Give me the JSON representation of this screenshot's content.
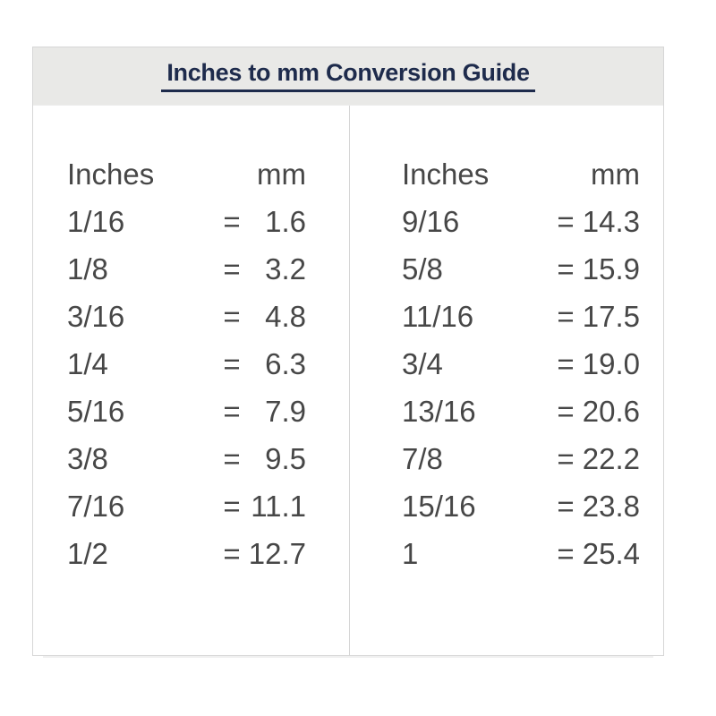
{
  "page": {
    "title": "Inches to mm Conversion Guide"
  },
  "table": {
    "left": {
      "inches_header": "Inches",
      "mm_header": "mm",
      "rows": [
        {
          "in": "1/16",
          "eq": "=",
          "mm": "1.6"
        },
        {
          "in": "1/8",
          "eq": "=",
          "mm": "3.2"
        },
        {
          "in": "3/16",
          "eq": "=",
          "mm": "4.8"
        },
        {
          "in": "1/4",
          "eq": "=",
          "mm": "6.3"
        },
        {
          "in": "5/16",
          "eq": "=",
          "mm": "7.9"
        },
        {
          "in": "3/8",
          "eq": "=",
          "mm": "9.5"
        },
        {
          "in": "7/16",
          "eq": "=",
          "mm": "11.1"
        },
        {
          "in": "1/2",
          "eq": "=",
          "mm": "12.7"
        }
      ]
    },
    "right": {
      "inches_header": "Inches",
      "mm_header": "mm",
      "rows": [
        {
          "in": "9/16",
          "eq": "=",
          "mm": "14.3"
        },
        {
          "in": "5/8",
          "eq": "=",
          "mm": "15.9"
        },
        {
          "in": "11/16",
          "eq": "=",
          "mm": "17.5"
        },
        {
          "in": "3/4",
          "eq": "=",
          "mm": "19.0"
        },
        {
          "in": "13/16",
          "eq": "=",
          "mm": "20.6"
        },
        {
          "in": "7/8",
          "eq": "=",
          "mm": "22.2"
        },
        {
          "in": "15/16",
          "eq": "=",
          "mm": "23.8"
        },
        {
          "in": "1",
          "eq": "=",
          "mm": "25.4"
        }
      ]
    }
  },
  "colors": {
    "title_text": "#1e2b4c",
    "title_underline": "#1e2b4c",
    "header_band_bg": "#e9e9e7",
    "table_border": "#d6d6d6",
    "data_text": "#474747"
  }
}
